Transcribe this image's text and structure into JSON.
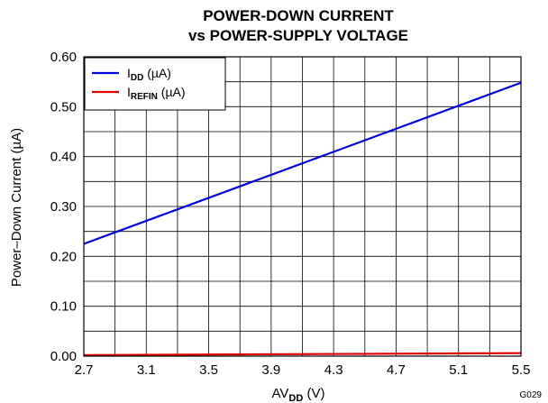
{
  "chart_data": {
    "type": "line",
    "title_lines": [
      "POWER-DOWN CURRENT",
      "vs POWER-SUPPLY VOLTAGE"
    ],
    "xlabel": {
      "main": "AV",
      "sub": "DD",
      "unit": " (V)"
    },
    "ylabel": "Power–Down Current (µA)",
    "xlim": [
      2.7,
      5.5
    ],
    "ylim": [
      0.0,
      0.6
    ],
    "x_ticks": [
      "2.7",
      "3.1",
      "3.5",
      "3.9",
      "4.3",
      "4.7",
      "5.1",
      "5.5"
    ],
    "y_ticks": [
      "0.00",
      "0.10",
      "0.20",
      "0.30",
      "0.40",
      "0.50",
      "0.60"
    ],
    "x_grid_step": 0.2,
    "y_grid_step": 0.05,
    "grid": true,
    "legend_position": "top-left",
    "figure_id": "G029",
    "series": [
      {
        "name": "I",
        "name_sub": "DD",
        "name_unit": " (µA)",
        "color": "#0000dd",
        "x": [
          2.7,
          5.5
        ],
        "y": [
          0.225,
          0.548
        ]
      },
      {
        "name": "I",
        "name_sub": "REFIN",
        "name_unit": " (µA)",
        "color": "#dd0000",
        "x": [
          2.7,
          5.5
        ],
        "y": [
          0.002,
          0.006
        ]
      }
    ]
  }
}
